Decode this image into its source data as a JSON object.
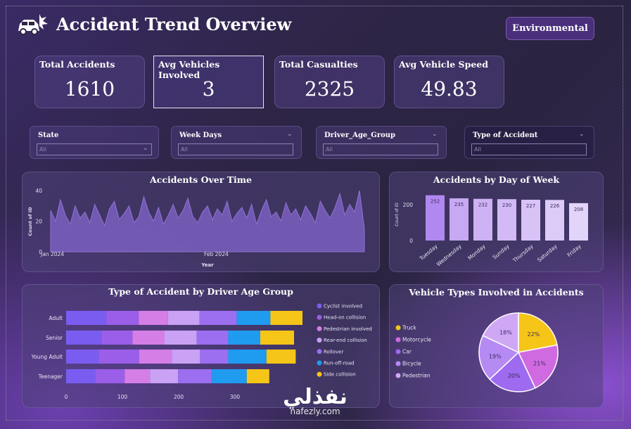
{
  "header": {
    "title": "Accident Trend Overview",
    "button_label": "Environmental",
    "logo_icon": "car-crash-icon"
  },
  "kpis": [
    {
      "label": "Total Accidents",
      "value": "1610"
    },
    {
      "label": "Avg Vehicles Involved",
      "value": "3"
    },
    {
      "label": "Total Casualties",
      "value": "2325"
    },
    {
      "label": "Avg Vehicle Speed",
      "value": "49.83"
    }
  ],
  "slicers": [
    {
      "label": "State",
      "value": "All"
    },
    {
      "label": "Week Days",
      "value": "All"
    },
    {
      "label": "Driver_Age_Group",
      "value": "All"
    },
    {
      "label": "Type of Accident",
      "value": "All"
    }
  ],
  "chart_data": [
    {
      "type": "area",
      "title": "Accidents Over Time",
      "xlabel": "Year",
      "ylabel": "Count of ID",
      "x_ticks": [
        "Jan 2024",
        "Feb 2024"
      ],
      "y_ticks": [
        "0",
        "20",
        "40"
      ],
      "ylim": [
        0,
        40
      ],
      "color": "#7a5fc0",
      "values": [
        27,
        20,
        34,
        24,
        18,
        30,
        22,
        26,
        19,
        31,
        24,
        17,
        28,
        33,
        21,
        25,
        30,
        19,
        23,
        36,
        26,
        20,
        29,
        18,
        24,
        31,
        22,
        27,
        35,
        23,
        19,
        26,
        30,
        21,
        28,
        24,
        33,
        20,
        25,
        29,
        22,
        31,
        18,
        27,
        34,
        23,
        26,
        20,
        32,
        24,
        28,
        21,
        30,
        25,
        19,
        33,
        27,
        22,
        29,
        38,
        24,
        31,
        26,
        40,
        15
      ]
    },
    {
      "type": "bar",
      "title": "Accidents by Day of Week",
      "ylabel": "Count of ID",
      "y_ticks": [
        "0",
        "200"
      ],
      "ylim": [
        0,
        270
      ],
      "categories": [
        "Tuesday",
        "Wednesday",
        "Monday",
        "Sunday",
        "Thursday",
        "Saturday",
        "Friday"
      ],
      "values": [
        252,
        235,
        232,
        230,
        227,
        226,
        208
      ],
      "colors": [
        "#b088f0",
        "#c6a8f3",
        "#cdb2f4",
        "#d2baf5",
        "#d8c2f6",
        "#dccaf7",
        "#e3d4f9"
      ]
    },
    {
      "type": "bar",
      "title": "Type of Accident by Driver Age Group",
      "orientation": "horizontal-stacked",
      "x_ticks": [
        "0",
        "100",
        "200",
        "300"
      ],
      "xlim": [
        0,
        420
      ],
      "categories": [
        "Adult",
        "Senior",
        "Young Adult",
        "Teenager"
      ],
      "series": [
        {
          "name": "Cyclist involved",
          "color": "#7b5cf0",
          "values": [
            72,
            63,
            58,
            52
          ]
        },
        {
          "name": "Head-on collision",
          "color": "#9a5ee8",
          "values": [
            57,
            55,
            72,
            52
          ]
        },
        {
          "name": "Pedestrian involved",
          "color": "#d47ee6",
          "values": [
            52,
            57,
            58,
            45
          ]
        },
        {
          "name": "Rear-end collision",
          "color": "#c9a1f5",
          "values": [
            56,
            57,
            50,
            50
          ]
        },
        {
          "name": "Rollover",
          "color": "#9c6ef0",
          "values": [
            66,
            56,
            50,
            60
          ]
        },
        {
          "name": "Run-off-road",
          "color": "#1f9bf0",
          "values": [
            60,
            57,
            68,
            62
          ]
        },
        {
          "name": "Side collision",
          "color": "#f5c518",
          "values": [
            57,
            60,
            52,
            40
          ]
        }
      ]
    },
    {
      "type": "pie",
      "title": "Vehicle Types Involved in Accidents",
      "legend_position": "left",
      "slices": [
        {
          "name": "Truck",
          "value": 22,
          "label": "22%",
          "color": "#f5c518"
        },
        {
          "name": "Motorcycle",
          "value": 21,
          "label": "21%",
          "color": "#d06ae0"
        },
        {
          "name": "Car",
          "value": 20,
          "label": "20%",
          "color": "#9d6af0"
        },
        {
          "name": "Bicycle",
          "value": 19,
          "label": "19%",
          "color": "#b68af3"
        },
        {
          "name": "Pedestrian",
          "value": 18,
          "label": "18%",
          "color": "#cfa8f5"
        }
      ]
    }
  ],
  "watermark": {
    "arabic": "نفذلي",
    "latin": "nafezly.com"
  }
}
